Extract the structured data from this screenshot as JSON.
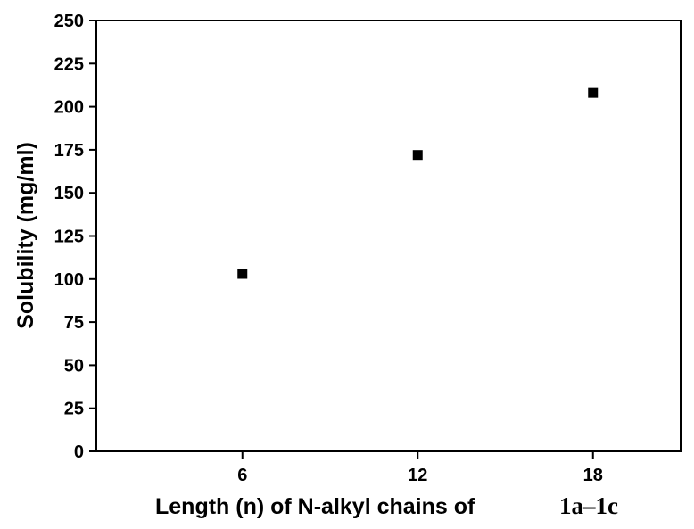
{
  "chart_data": {
    "type": "scatter",
    "xlabel": "Length (n) of N-alkyl chains of",
    "xlabel_compound": "1a–1c",
    "ylabel": "Solubility  (mg/ml)",
    "x": [
      6,
      12,
      18
    ],
    "y": [
      103,
      172,
      208
    ],
    "xlim": [
      1,
      21
    ],
    "ylim": [
      0,
      250
    ],
    "xticks": [
      6,
      12,
      18
    ],
    "yticks": [
      0,
      25,
      50,
      75,
      100,
      125,
      150,
      175,
      200,
      225,
      250
    ],
    "marker": "square",
    "marker_color": "#000000",
    "grid": false,
    "legend": "none"
  }
}
